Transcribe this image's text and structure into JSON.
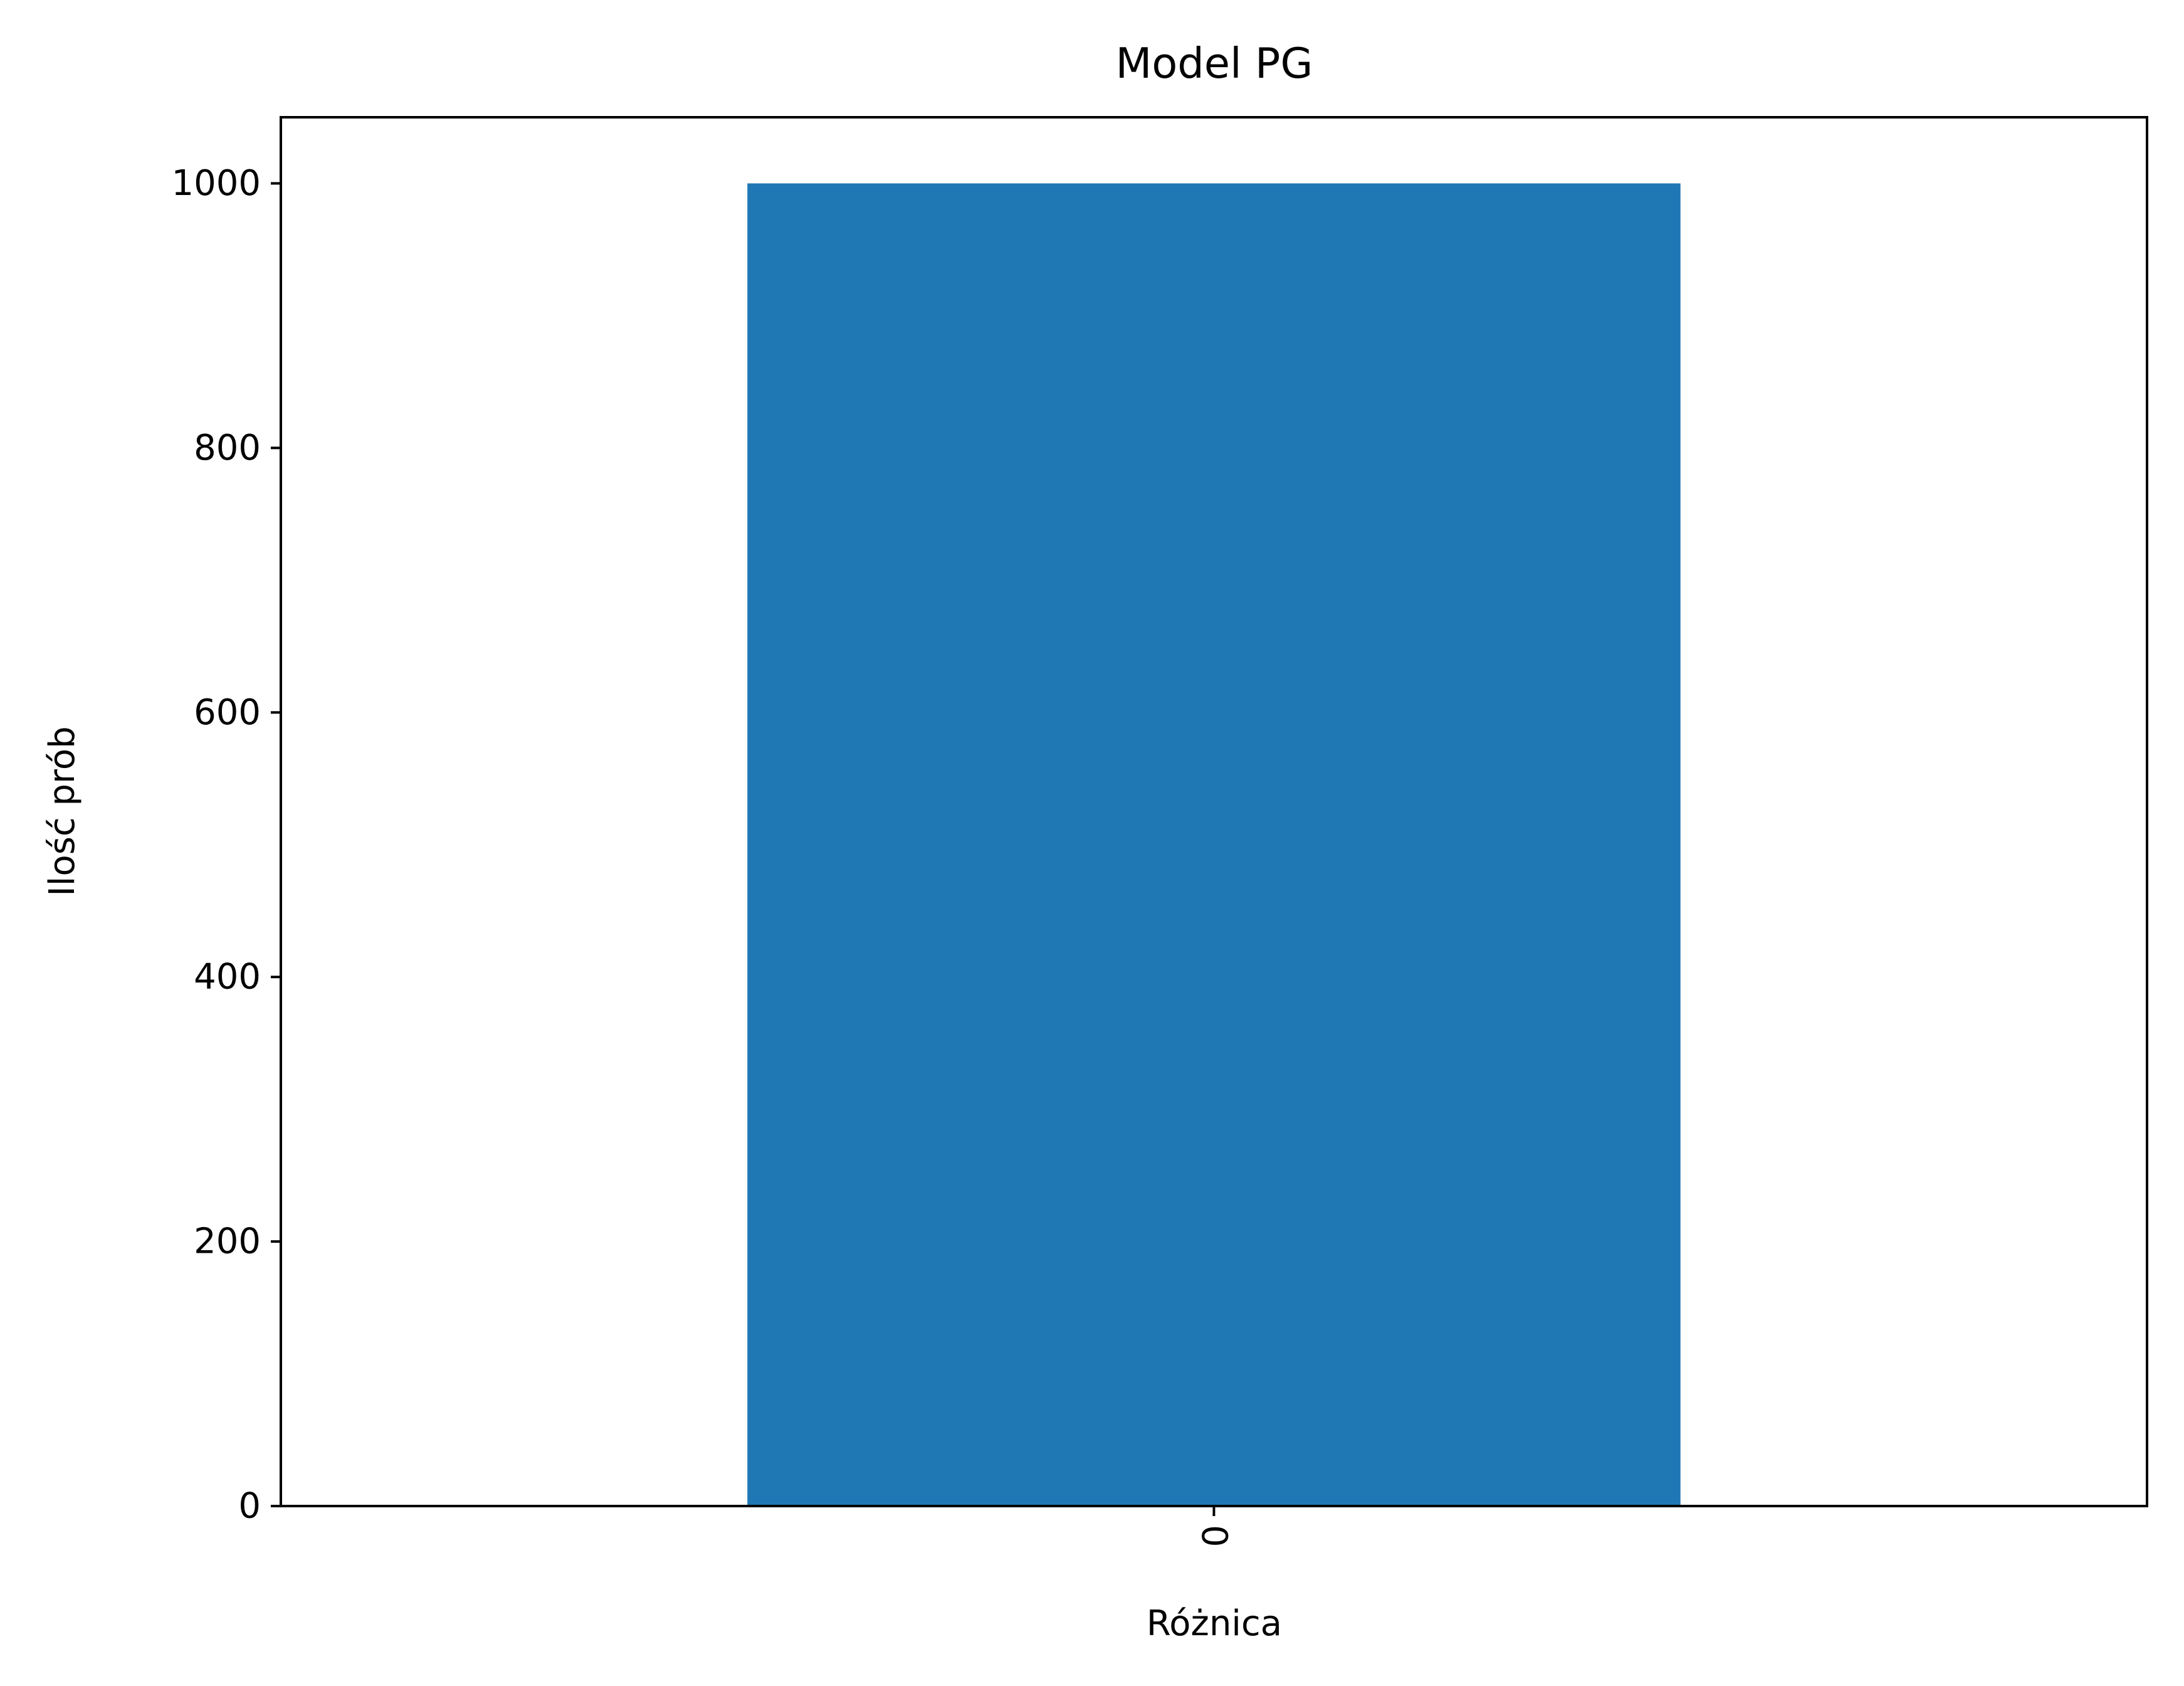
{
  "chart_data": {
    "type": "bar",
    "title": "Model PG",
    "xlabel": "Różnica",
    "ylabel": "Ilość prób",
    "categories": [
      "0"
    ],
    "values": [
      1000
    ],
    "ylim": [
      0,
      1050
    ],
    "yticks": [
      "0",
      "200",
      "400",
      "600",
      "800",
      "1000"
    ],
    "xtick_rotation": "vertical",
    "grid": false,
    "legend": "none",
    "bar_color": "#1f77b4"
  }
}
